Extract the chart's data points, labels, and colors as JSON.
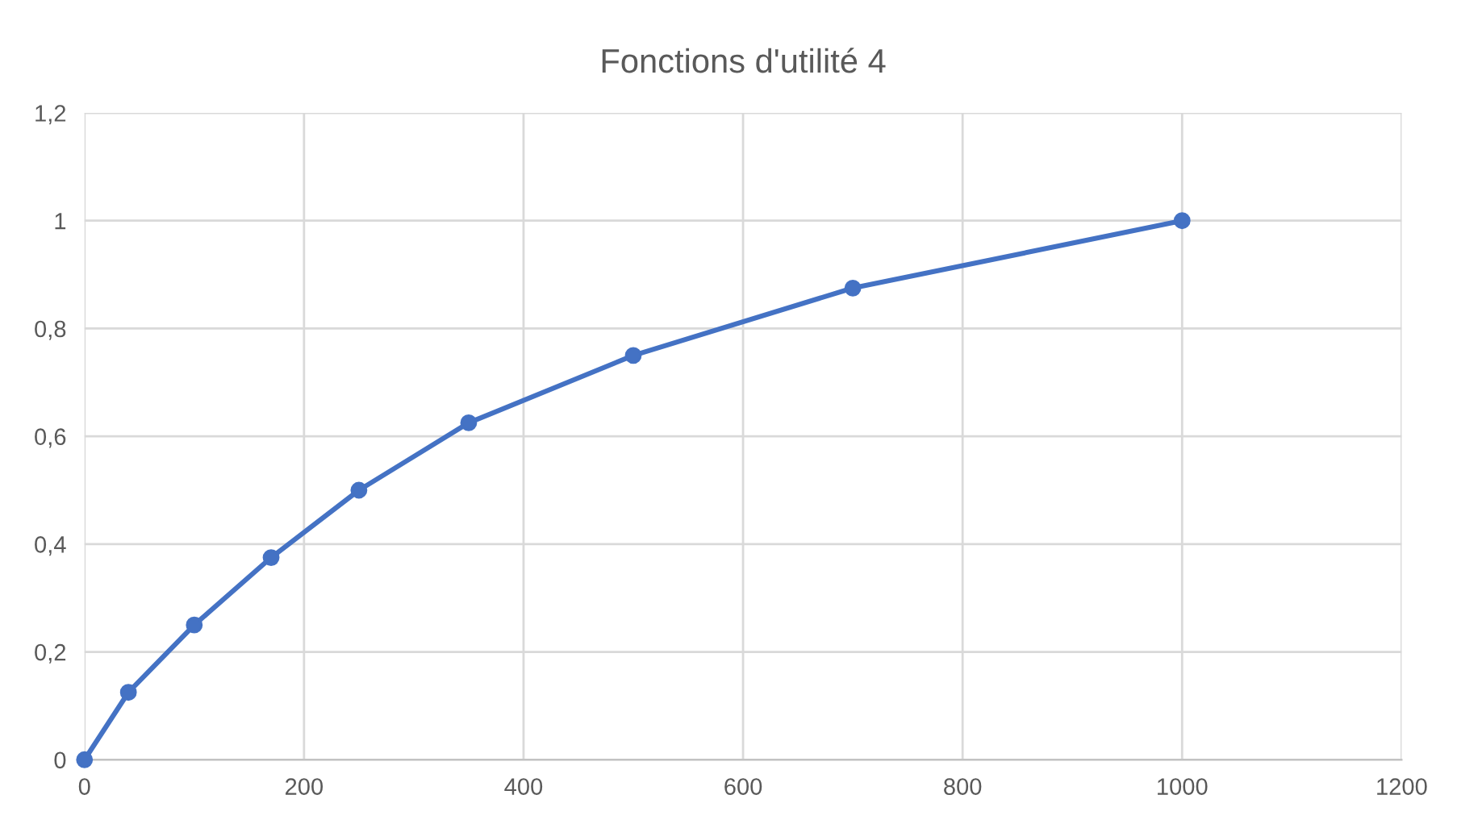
{
  "chart_data": {
    "type": "line",
    "title": "Fonctions d'utilité 4",
    "x": [
      0,
      40,
      100,
      170,
      250,
      350,
      500,
      700,
      1000
    ],
    "series": [
      {
        "color": "#4472c4",
        "values": [
          0,
          0.125,
          0.25,
          0.375,
          0.5,
          0.625,
          0.75,
          0.875,
          1
        ]
      }
    ],
    "xlim": [
      0,
      1200
    ],
    "xticks": [
      0,
      200,
      400,
      600,
      800,
      1000,
      1200
    ],
    "ylim": [
      0,
      1.2
    ],
    "yticks": [
      0,
      {
        "value": 0.2,
        "label": "0,2"
      },
      {
        "value": 0.4,
        "label": "0,4"
      },
      {
        "value": 0.6,
        "label": "0,6"
      },
      {
        "value": 0.8,
        "label": "0,8"
      },
      1,
      {
        "value": 1.2,
        "label": "1,2"
      }
    ],
    "grid": true,
    "marker": "circle",
    "line_style": "solid"
  }
}
